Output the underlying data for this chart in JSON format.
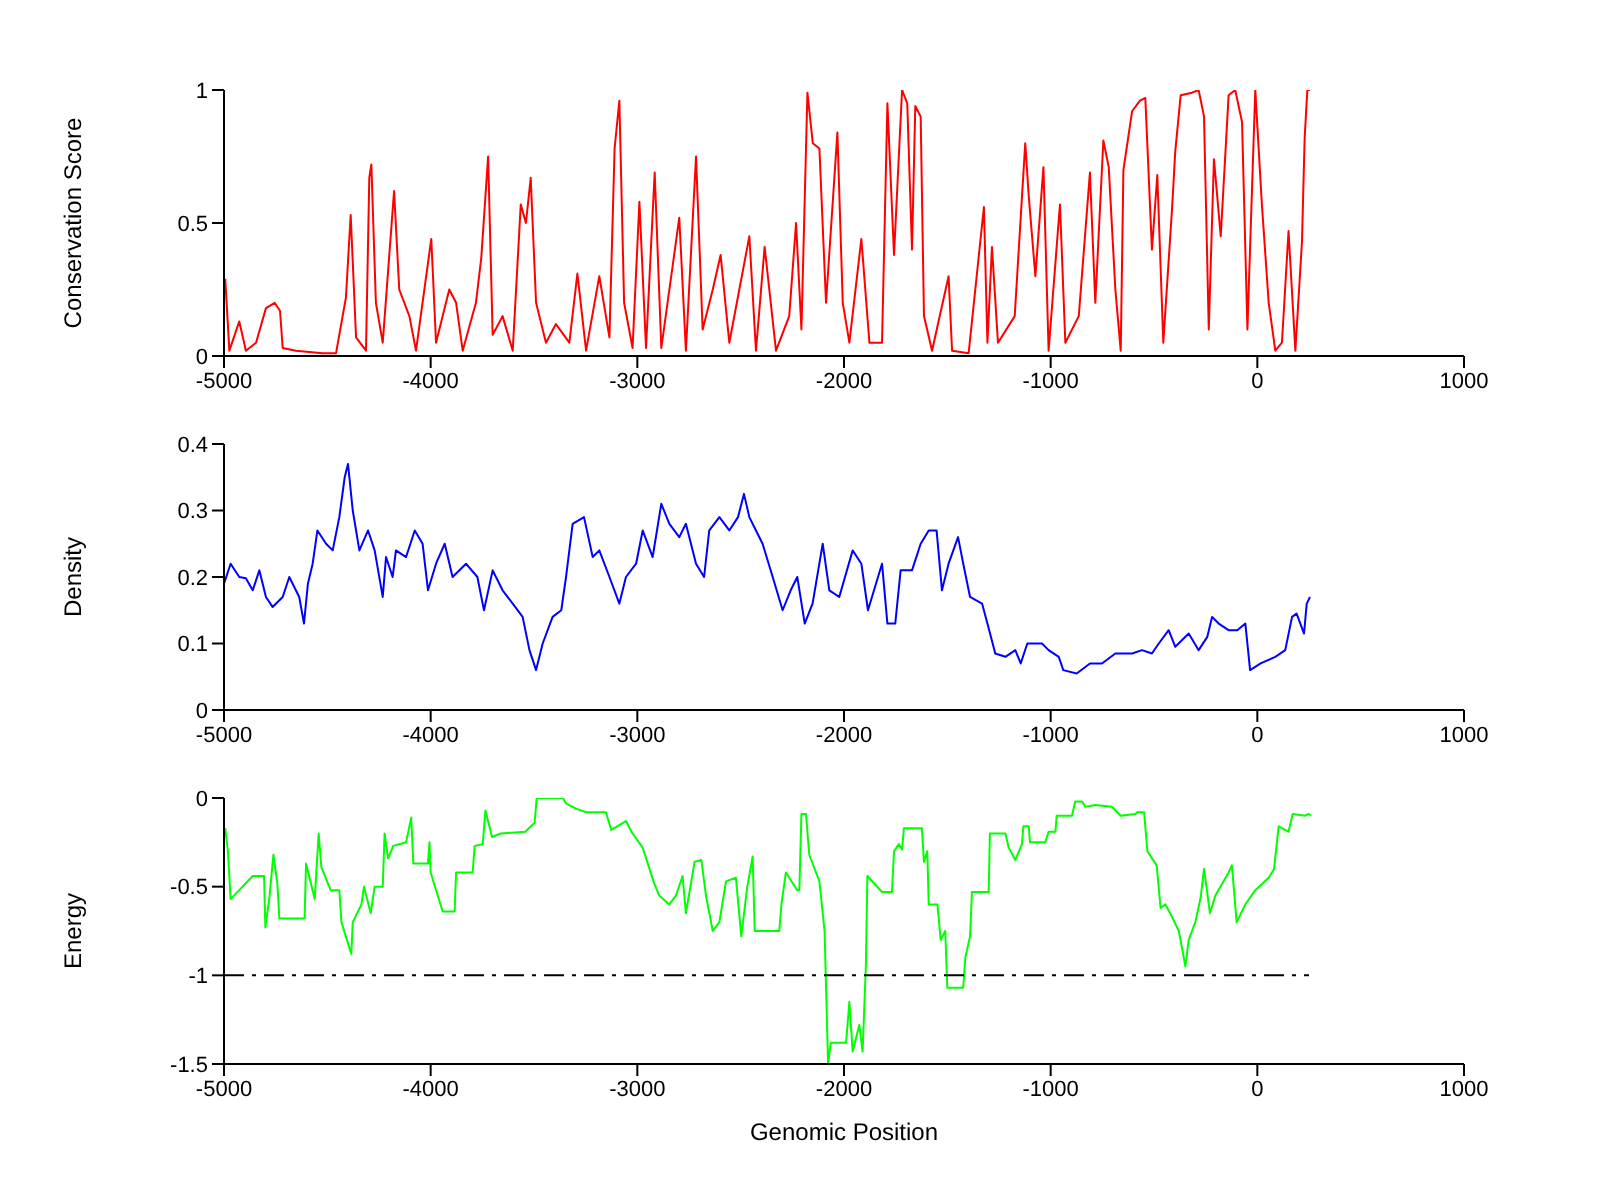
{
  "chart_data": [
    {
      "type": "line",
      "ylabel": "Conservation Score",
      "xlim": [
        -5000,
        1000
      ],
      "xticks": [
        -5000,
        -4000,
        -3000,
        -2000,
        -1000,
        0,
        1000
      ],
      "ylim": [
        0,
        1
      ],
      "yticks": [
        0,
        0.5,
        1
      ],
      "series": [
        {
          "color": "#ff0000",
          "x": [
            -4994,
            -4974,
            -4926,
            -4894,
            -4845,
            -4797,
            -4755,
            -4729,
            -4716,
            -4652,
            -4523,
            -4458,
            -4410,
            -4387,
            -4361,
            -4313,
            -4297,
            -4287,
            -4265,
            -4232,
            -4177,
            -4152,
            -4103,
            -4071,
            -3997,
            -3974,
            -3910,
            -3877,
            -3845,
            -3781,
            -3755,
            -3722,
            -3700,
            -3652,
            -3603,
            -3564,
            -3539,
            -3516,
            -3490,
            -3442,
            -3394,
            -3329,
            -3290,
            -3248,
            -3184,
            -3135,
            -3110,
            -3087,
            -3064,
            -3023,
            -2990,
            -2958,
            -2916,
            -2884,
            -2797,
            -2765,
            -2716,
            -2684,
            -2635,
            -2597,
            -2555,
            -2458,
            -2426,
            -2384,
            -2329,
            -2265,
            -2232,
            -2206,
            -2177,
            -2151,
            -2119,
            -2087,
            -2032,
            -2006,
            -1974,
            -1916,
            -1877,
            -1816,
            -1790,
            -1758,
            -1719,
            -1694,
            -1671,
            -1655,
            -1629,
            -1613,
            -1574,
            -1494,
            -1477,
            -1397,
            -1323,
            -1306,
            -1284,
            -1255,
            -1174,
            -1123,
            -1106,
            -1074,
            -1035,
            -1010,
            -955,
            -929,
            -864,
            -810,
            -784,
            -745,
            -719,
            -687,
            -661,
            -648,
            -606,
            -568,
            -542,
            -510,
            -484,
            -455,
            -413,
            -397,
            -371,
            -316,
            -284,
            -258,
            -235,
            -210,
            -177,
            -139,
            -107,
            -74,
            -48,
            -10,
            22,
            55,
            87,
            119,
            151,
            184,
            216,
            229,
            242,
            255
          ],
          "values": [
            0.29,
            0.02,
            0.13,
            0.02,
            0.05,
            0.18,
            0.2,
            0.17,
            0.03,
            0.02,
            0.01,
            0.01,
            0.22,
            0.53,
            0.07,
            0.02,
            0.67,
            0.72,
            0.2,
            0.05,
            0.62,
            0.25,
            0.15,
            0.02,
            0.44,
            0.05,
            0.25,
            0.2,
            0.02,
            0.2,
            0.37,
            0.75,
            0.08,
            0.15,
            0.02,
            0.57,
            0.5,
            0.67,
            0.2,
            0.05,
            0.12,
            0.05,
            0.31,
            0.02,
            0.3,
            0.07,
            0.78,
            0.96,
            0.2,
            0.03,
            0.58,
            0.03,
            0.69,
            0.03,
            0.52,
            0.02,
            0.75,
            0.1,
            0.25,
            0.38,
            0.05,
            0.45,
            0.02,
            0.41,
            0.02,
            0.15,
            0.5,
            0.1,
            0.99,
            0.8,
            0.78,
            0.2,
            0.84,
            0.2,
            0.05,
            0.44,
            0.05,
            0.05,
            0.95,
            0.38,
            1.0,
            0.95,
            0.4,
            0.94,
            0.9,
            0.15,
            0.02,
            0.3,
            0.02,
            0.01,
            0.56,
            0.05,
            0.41,
            0.05,
            0.15,
            0.8,
            0.6,
            0.3,
            0.71,
            0.02,
            0.57,
            0.05,
            0.15,
            0.69,
            0.2,
            0.81,
            0.71,
            0.25,
            0.02,
            0.7,
            0.92,
            0.96,
            0.97,
            0.4,
            0.68,
            0.05,
            0.55,
            0.77,
            0.98,
            0.99,
            1.0,
            0.9,
            0.1,
            0.74,
            0.45,
            0.98,
            1.0,
            0.88,
            0.1,
            1.0,
            0.57,
            0.2,
            0.02,
            0.05,
            0.47,
            0.02,
            0.43,
            0.82,
            1.0,
            1.0
          ]
        }
      ]
    },
    {
      "type": "line",
      "ylabel": "Density",
      "xlim": [
        -5000,
        1000
      ],
      "xticks": [
        -5000,
        -4000,
        -3000,
        -2000,
        -1000,
        0,
        1000
      ],
      "ylim": [
        0,
        0.4
      ],
      "yticks": [
        0,
        0.1,
        0.2,
        0.3,
        0.4
      ],
      "series": [
        {
          "color": "#0000ff",
          "x": [
            -5000,
            -4968,
            -4926,
            -4894,
            -4861,
            -4829,
            -4797,
            -4765,
            -4716,
            -4684,
            -4636,
            -4613,
            -4594,
            -4571,
            -4548,
            -4506,
            -4474,
            -4442,
            -4416,
            -4400,
            -4377,
            -4345,
            -4303,
            -4271,
            -4232,
            -4216,
            -4184,
            -4168,
            -4119,
            -4077,
            -4039,
            -4013,
            -3974,
            -3932,
            -3894,
            -3829,
            -3774,
            -3742,
            -3700,
            -3652,
            -3603,
            -3555,
            -3522,
            -3490,
            -3458,
            -3410,
            -3368,
            -3345,
            -3313,
            -3258,
            -3216,
            -3184,
            -3135,
            -3087,
            -3055,
            -3006,
            -2974,
            -2926,
            -2884,
            -2845,
            -2797,
            -2765,
            -2716,
            -2677,
            -2652,
            -2603,
            -2555,
            -2513,
            -2484,
            -2458,
            -2426,
            -2394,
            -2345,
            -2297,
            -2258,
            -2226,
            -2190,
            -2152,
            -2103,
            -2071,
            -2023,
            -1958,
            -1916,
            -1884,
            -1816,
            -1790,
            -1752,
            -1726,
            -1671,
            -1629,
            -1590,
            -1552,
            -1526,
            -1494,
            -1448,
            -1423,
            -1390,
            -1332,
            -1306,
            -1268,
            -1219,
            -1171,
            -1145,
            -1113,
            -1042,
            -1010,
            -961,
            -939,
            -874,
            -810,
            -752,
            -687,
            -606,
            -558,
            -510,
            -477,
            -429,
            -397,
            -332,
            -284,
            -242,
            -219,
            -187,
            -139,
            -97,
            -58,
            -35,
            16,
            87,
            135,
            168,
            190,
            226,
            239,
            255
          ],
          "values": [
            0.19,
            0.22,
            0.2,
            0.198,
            0.18,
            0.21,
            0.17,
            0.155,
            0.17,
            0.2,
            0.17,
            0.13,
            0.19,
            0.22,
            0.27,
            0.25,
            0.24,
            0.29,
            0.35,
            0.37,
            0.3,
            0.24,
            0.27,
            0.24,
            0.17,
            0.23,
            0.2,
            0.24,
            0.23,
            0.27,
            0.25,
            0.18,
            0.22,
            0.25,
            0.2,
            0.22,
            0.2,
            0.15,
            0.21,
            0.18,
            0.16,
            0.14,
            0.09,
            0.06,
            0.1,
            0.14,
            0.15,
            0.2,
            0.28,
            0.29,
            0.23,
            0.24,
            0.2,
            0.16,
            0.2,
            0.22,
            0.27,
            0.23,
            0.31,
            0.28,
            0.26,
            0.28,
            0.22,
            0.2,
            0.27,
            0.29,
            0.27,
            0.29,
            0.325,
            0.29,
            0.27,
            0.25,
            0.2,
            0.15,
            0.18,
            0.2,
            0.13,
            0.16,
            0.25,
            0.18,
            0.17,
            0.24,
            0.22,
            0.15,
            0.22,
            0.13,
            0.13,
            0.21,
            0.21,
            0.25,
            0.27,
            0.27,
            0.18,
            0.22,
            0.26,
            0.22,
            0.17,
            0.16,
            0.13,
            0.085,
            0.08,
            0.09,
            0.07,
            0.1,
            0.1,
            0.09,
            0.08,
            0.06,
            0.055,
            0.07,
            0.07,
            0.085,
            0.085,
            0.09,
            0.085,
            0.1,
            0.12,
            0.095,
            0.115,
            0.09,
            0.11,
            0.14,
            0.13,
            0.12,
            0.12,
            0.13,
            0.06,
            0.07,
            0.08,
            0.09,
            0.14,
            0.145,
            0.115,
            0.16,
            0.17
          ]
        }
      ]
    },
    {
      "type": "line",
      "ylabel": "Energy",
      "xlabel": "Genomic Position",
      "xlim": [
        -5000,
        1000
      ],
      "xticks": [
        -5000,
        -4000,
        -3000,
        -2000,
        -1000,
        0,
        1000
      ],
      "ylim": [
        -1.5,
        0
      ],
      "yticks": [
        -1.5,
        -1,
        -0.5,
        0
      ],
      "series": [
        {
          "color": "#00ff00",
          "x": [
            -4994,
            -4981,
            -4968,
            -4910,
            -4861,
            -4806,
            -4800,
            -4781,
            -4761,
            -4742,
            -4732,
            -4610,
            -4603,
            -4561,
            -4542,
            -4529,
            -4484,
            -4442,
            -4432,
            -4384,
            -4377,
            -4335,
            -4323,
            -4290,
            -4271,
            -4232,
            -4223,
            -4206,
            -4181,
            -4119,
            -4094,
            -4084,
            -4013,
            -4006,
            -4000,
            -3942,
            -3884,
            -3877,
            -3797,
            -3787,
            -3748,
            -3735,
            -3703,
            -3661,
            -3542,
            -3497,
            -3487,
            -3361,
            -3345,
            -3297,
            -3248,
            -3152,
            -3126,
            -3055,
            -3023,
            -2974,
            -2919,
            -2894,
            -2845,
            -2813,
            -2781,
            -2765,
            -2723,
            -2690,
            -2668,
            -2635,
            -2603,
            -2571,
            -2523,
            -2497,
            -2468,
            -2442,
            -2432,
            -2313,
            -2303,
            -2281,
            -2226,
            -2216,
            -2206,
            -2184,
            -2168,
            -2119,
            -2094,
            -2077,
            -2064,
            -1990,
            -1974,
            -1958,
            -1926,
            -1910,
            -1894,
            -1887,
            -1816,
            -1768,
            -1758,
            -1735,
            -1719,
            -1710,
            -1623,
            -1613,
            -1597,
            -1590,
            -1548,
            -1532,
            -1510,
            -1500,
            -1423,
            -1413,
            -1390,
            -1381,
            -1300,
            -1294,
            -1219,
            -1203,
            -1171,
            -1139,
            -1132,
            -1106,
            -1100,
            -1026,
            -1010,
            -977,
            -971,
            -897,
            -881,
            -848,
            -832,
            -784,
            -703,
            -661,
            -590,
            -581,
            -548,
            -532,
            -487,
            -468,
            -445,
            -413,
            -380,
            -348,
            -332,
            -300,
            -274,
            -258,
            -229,
            -203,
            -139,
            -123,
            -100,
            -58,
            -10,
            55,
            81,
            103,
            151,
            171,
            232,
            248,
            261
          ],
          "values": [
            -0.17,
            -0.3,
            -0.57,
            -0.5,
            -0.44,
            -0.44,
            -0.73,
            -0.57,
            -0.32,
            -0.48,
            -0.68,
            -0.68,
            -0.37,
            -0.57,
            -0.2,
            -0.39,
            -0.52,
            -0.52,
            -0.7,
            -0.88,
            -0.7,
            -0.6,
            -0.5,
            -0.65,
            -0.5,
            -0.5,
            -0.2,
            -0.34,
            -0.27,
            -0.25,
            -0.11,
            -0.37,
            -0.37,
            -0.25,
            -0.42,
            -0.64,
            -0.64,
            -0.42,
            -0.42,
            -0.27,
            -0.26,
            -0.07,
            -0.22,
            -0.2,
            -0.19,
            -0.14,
            0,
            0,
            -0.03,
            -0.06,
            -0.08,
            -0.08,
            -0.18,
            -0.13,
            -0.2,
            -0.28,
            -0.48,
            -0.55,
            -0.6,
            -0.55,
            -0.44,
            -0.65,
            -0.36,
            -0.35,
            -0.55,
            -0.75,
            -0.7,
            -0.47,
            -0.45,
            -0.78,
            -0.5,
            -0.33,
            -0.75,
            -0.75,
            -0.6,
            -0.42,
            -0.52,
            -0.52,
            -0.09,
            -0.09,
            -0.32,
            -0.47,
            -0.75,
            -1.5,
            -1.38,
            -1.38,
            -1.15,
            -1.43,
            -1.28,
            -1.43,
            -0.94,
            -0.44,
            -0.53,
            -0.53,
            -0.3,
            -0.26,
            -0.29,
            -0.17,
            -0.17,
            -0.36,
            -0.3,
            -0.6,
            -0.6,
            -0.8,
            -0.75,
            -1.07,
            -1.07,
            -0.9,
            -0.78,
            -0.53,
            -0.53,
            -0.2,
            -0.2,
            -0.28,
            -0.35,
            -0.26,
            -0.16,
            -0.16,
            -0.25,
            -0.25,
            -0.19,
            -0.19,
            -0.1,
            -0.1,
            -0.02,
            -0.02,
            -0.05,
            -0.04,
            -0.05,
            -0.1,
            -0.09,
            -0.08,
            -0.08,
            -0.3,
            -0.38,
            -0.62,
            -0.6,
            -0.67,
            -0.75,
            -0.95,
            -0.8,
            -0.7,
            -0.56,
            -0.4,
            -0.65,
            -0.55,
            -0.42,
            -0.38,
            -0.7,
            -0.6,
            -0.52,
            -0.45,
            -0.4,
            -0.16,
            -0.19,
            -0.09,
            -0.1,
            -0.09,
            -0.1
          ]
        },
        {
          "type": "line",
          "color": "#000000",
          "line_style": "dashed",
          "x": [
            -5000,
            250
          ],
          "values": [
            -1,
            -1
          ]
        }
      ]
    }
  ]
}
